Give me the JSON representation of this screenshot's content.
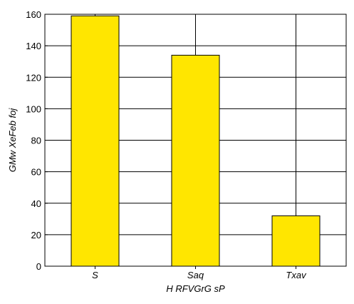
{
  "chart_data": {
    "type": "bar",
    "categories": [
      "S",
      "Saq",
      "Txav"
    ],
    "values": [
      159,
      134,
      32
    ],
    "xlabel": "H RFVGrG sP",
    "ylabel": "GMw XeFeb foj",
    "ylim": [
      0,
      160
    ],
    "yticks": [
      0,
      20,
      40,
      60,
      80,
      100,
      120,
      140,
      160
    ],
    "grid": true,
    "bar_color": "#FFE600",
    "bar_edge_color": "#000000"
  }
}
